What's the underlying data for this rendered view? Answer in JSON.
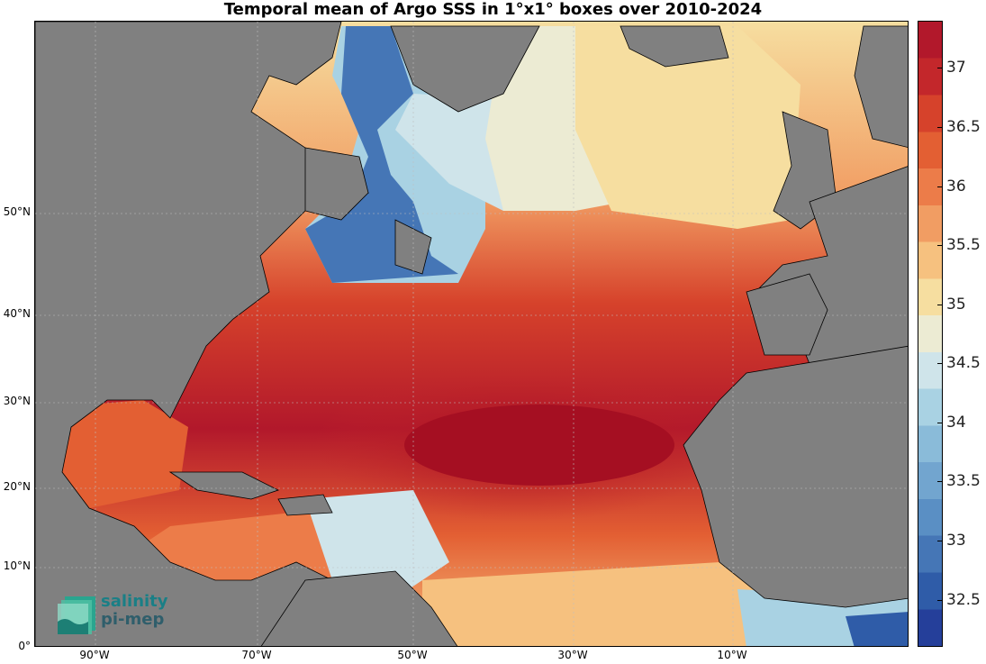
{
  "title": "Temporal mean of Argo SSS in 1°x1° boxes over 2010-2024",
  "logo": {
    "line1": "salinity",
    "line2": "pi-mep"
  },
  "lat_labels": [
    "50°N",
    "40°N",
    "30°N",
    "20°N",
    "10°N",
    "0°"
  ],
  "lon_labels": [
    "90°W",
    "70°W",
    "50°W",
    "30°W",
    "10°W"
  ],
  "colorbar": {
    "ticks": [
      "37",
      "36.5",
      "36",
      "35.5",
      "35",
      "34.5",
      "34",
      "33.5",
      "33",
      "32.5"
    ],
    "colors": [
      "#b2182b",
      "#c3272b",
      "#d6422b",
      "#e35f33",
      "#ec7c49",
      "#f19d63",
      "#f6c17f",
      "#f6dea0",
      "#ecebd3",
      "#cfe4ea",
      "#a9d2e3",
      "#8abbd9",
      "#72a5cf",
      "#5a8fc4",
      "#4576b6",
      "#2f5ca8",
      "#253f9a"
    ],
    "range": [
      32.1,
      37.4
    ]
  },
  "colors": {
    "land": "#808080",
    "ocean_missing": "#ffffff"
  }
}
